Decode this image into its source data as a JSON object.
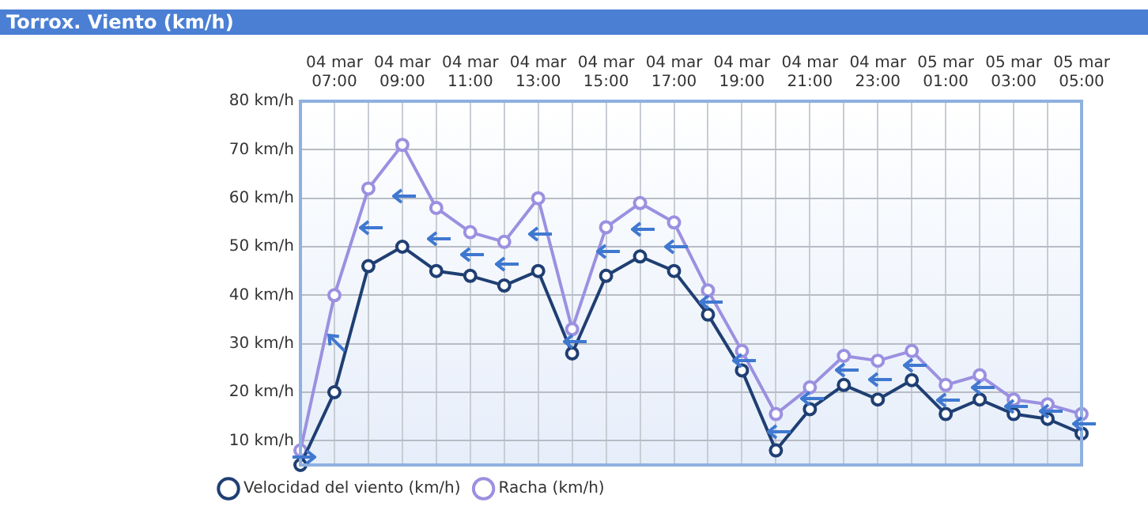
{
  "chart_data": {
    "type": "line",
    "title": "Torrox. Viento (km/h)",
    "categories": [
      null,
      "04 mar 07:00",
      null,
      "04 mar 09:00",
      null,
      "04 mar 11:00",
      null,
      "04 mar 13:00",
      null,
      "04 mar 15:00",
      null,
      "04 mar 17:00",
      null,
      "04 mar 19:00",
      null,
      "04 mar 21:00",
      null,
      "04 mar 23:00",
      null,
      "05 mar 01:00",
      null,
      "05 mar 03:00",
      null,
      "05 mar 05:00"
    ],
    "series": [
      {
        "name": "Velocidad del viento (km/h)",
        "color": "#1f3f73",
        "values": [
          5,
          20,
          46,
          50,
          45,
          44,
          42,
          45,
          28,
          44,
          48,
          45,
          36,
          24.5,
          8,
          16.5,
          21.5,
          18.5,
          22.5,
          15.5,
          18.5,
          15.5,
          14.5,
          11.5
        ]
      },
      {
        "name": "Racha (km/h)",
        "color": "#9b90e0",
        "values": [
          8,
          40,
          62,
          71,
          58,
          53,
          51,
          60,
          33,
          54,
          59,
          55,
          41,
          28.5,
          15.5,
          21,
          27.5,
          26.5,
          28.5,
          21.5,
          23.5,
          18.5,
          17.5,
          15.5
        ]
      }
    ],
    "ylim": [
      5,
      80
    ],
    "yticks": [
      {
        "value": 10,
        "label": "10 km/h"
      },
      {
        "value": 20,
        "label": "20 km/h"
      },
      {
        "value": 30,
        "label": "30 km/h"
      },
      {
        "value": 40,
        "label": "40 km/h"
      },
      {
        "value": 50,
        "label": "50 km/h"
      },
      {
        "value": 60,
        "label": "60 km/h"
      },
      {
        "value": 70,
        "label": "70 km/h"
      },
      {
        "value": 80,
        "label": "80 km/h"
      }
    ],
    "grid": true,
    "legend": "bottom left",
    "marker": "circle",
    "line_style": "solid"
  }
}
